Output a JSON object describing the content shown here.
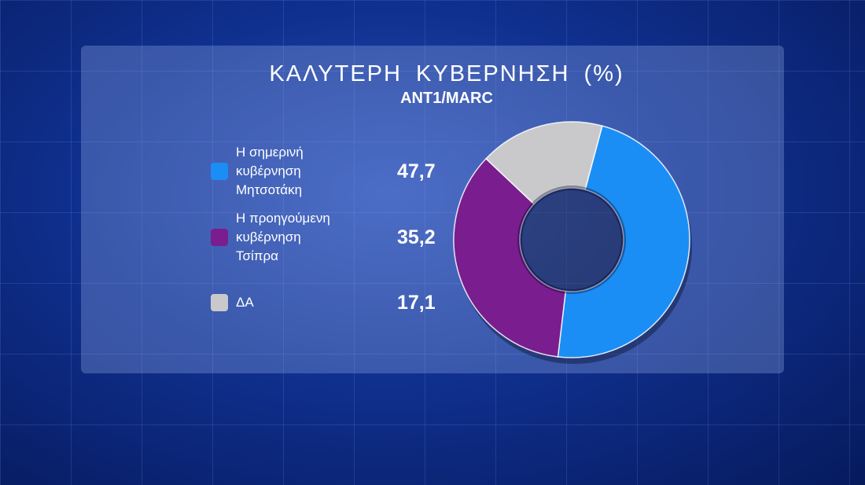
{
  "chart_data": {
    "type": "pie",
    "title": "ΚΑΛΥΤΕΡΗ ΚΥΒΕΡΝΗΣΗ (%)",
    "subtitle": "ANT1/MARC",
    "categories": [
      "Η σημερινή κυβέρνηση Μητσοτάκη",
      "Η προηγούμενη κυβέρνηση Τσίπρα",
      "ΔΑ"
    ],
    "values": [
      47.7,
      35.2,
      17.1
    ],
    "value_labels": [
      "47,7",
      "35,2",
      "17,1"
    ],
    "colors": [
      "#1a8ef5",
      "#7a1d8e",
      "#c9c9cc"
    ]
  }
}
